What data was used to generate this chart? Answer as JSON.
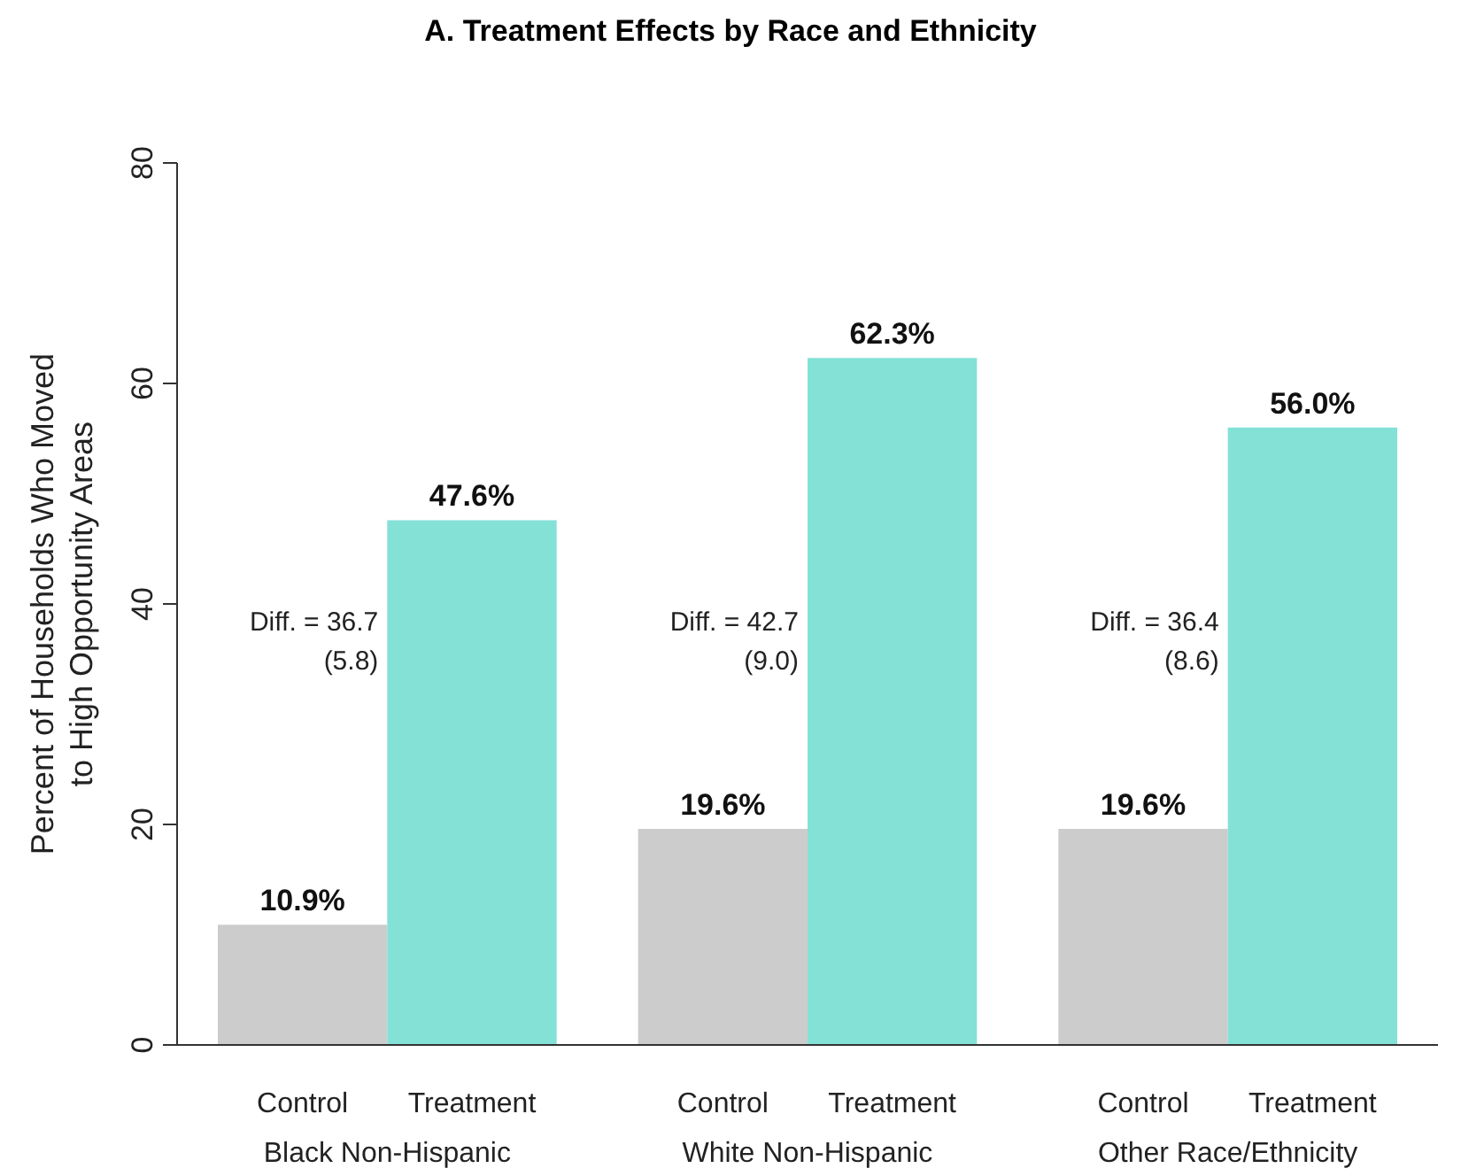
{
  "chart_data": {
    "type": "bar",
    "title": "A. Treatment Effects by Race and Ethnicity",
    "ylabel": "Percent of Households Who Moved\nto High Opportunity Areas",
    "categories": [
      "Black Non-Hispanic",
      "White Non-Hispanic",
      "Other Race/Ethnicity"
    ],
    "series": [
      {
        "name": "Control",
        "color": "#cccccc",
        "values": [
          10.9,
          19.6,
          19.6
        ],
        "value_labels": [
          "10.9%",
          "19.6%",
          "19.6%"
        ]
      },
      {
        "name": "Treatment",
        "color": "#84e1d6",
        "values": [
          47.6,
          62.3,
          56.0
        ],
        "value_labels": [
          "47.6%",
          "62.3%",
          "56.0%"
        ]
      }
    ],
    "ylim": [
      0,
      80
    ],
    "yticks": [
      0,
      20,
      40,
      60,
      80
    ],
    "grid": false,
    "legend": false,
    "annotations": [
      {
        "text": "Diff. = 36.7\n(5.8)",
        "x": "Black Non-Hispanic",
        "y": 36
      },
      {
        "text": "Diff. = 42.7\n(9.0)",
        "x": "White Non-Hispanic",
        "y": 36
      },
      {
        "text": "Diff. = 36.4\n(8.6)",
        "x": "Other Race/Ethnicity",
        "y": 36
      }
    ]
  }
}
